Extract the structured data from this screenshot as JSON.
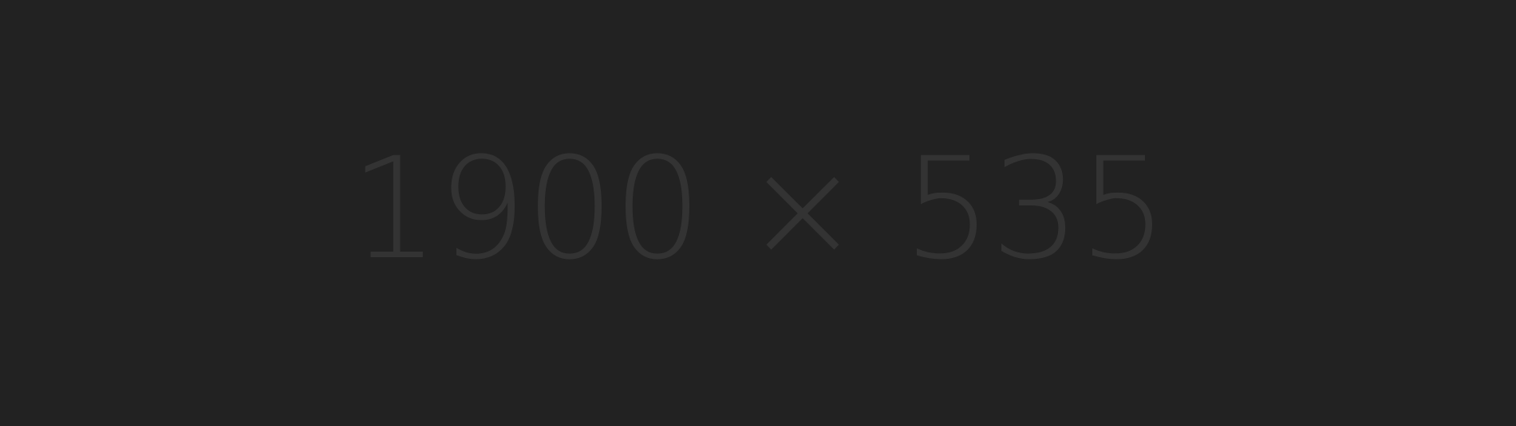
{
  "placeholder": {
    "label": "1900 × 535",
    "background_color": "#222222",
    "text_color": "#333333"
  }
}
